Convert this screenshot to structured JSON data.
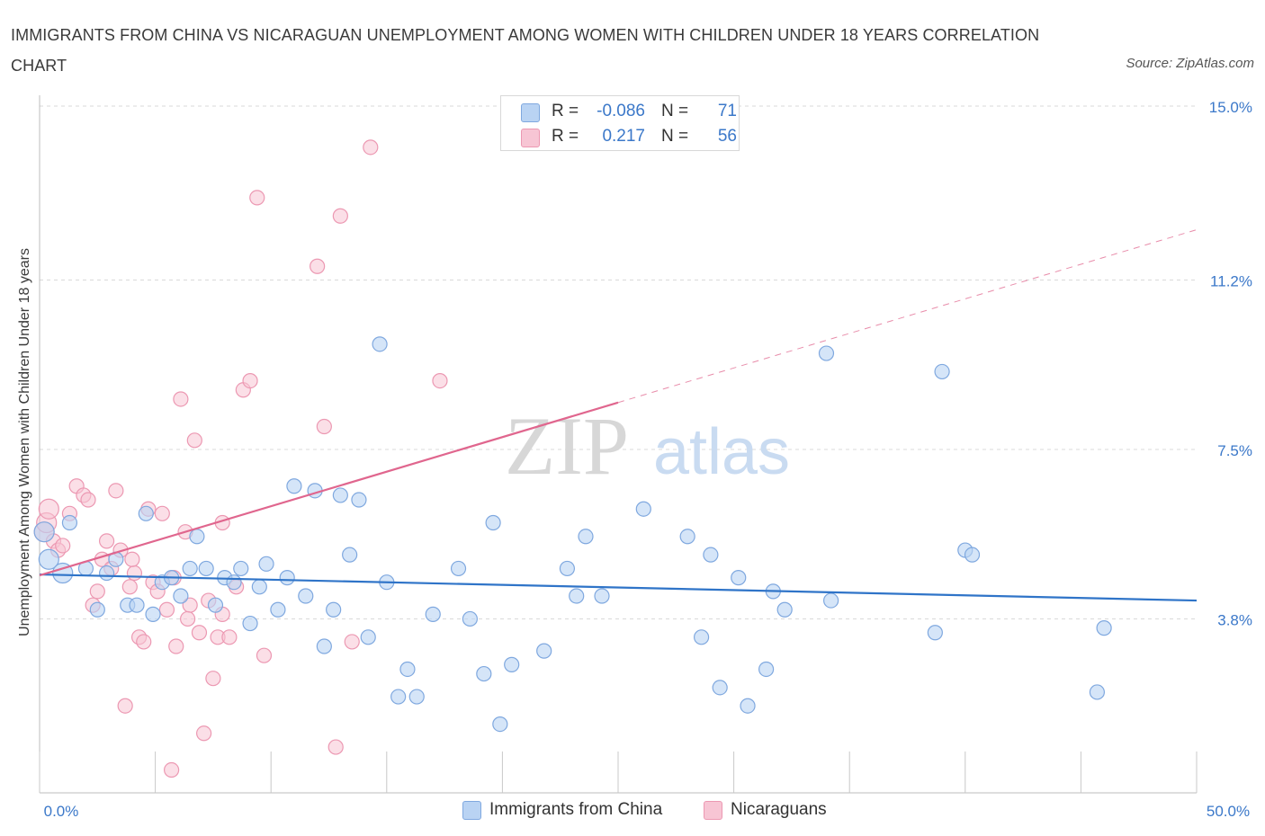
{
  "header": {
    "title": "IMMIGRANTS FROM CHINA VS NICARAGUAN UNEMPLOYMENT AMONG WOMEN WITH CHILDREN UNDER 18 YEARS CORRELATION CHART",
    "source": "Source: ZipAtlas.com"
  },
  "watermark": {
    "zip": "ZIP",
    "atlas": "atlas"
  },
  "legend": {
    "r_label": "R =",
    "n_label": "N =",
    "china": {
      "r": "-0.086",
      "n": "71"
    },
    "nicaraguans": {
      "r": "0.217",
      "n": "56"
    }
  },
  "colors": {
    "china_fill": "#b9d3f3",
    "china_stroke": "#7fa8df",
    "china_line": "#2f74c8",
    "nic_fill": "#f7c5d4",
    "nic_stroke": "#ec98b2",
    "nic_line": "#e0668e",
    "tick_text": "#3b78c9",
    "grid": "#d9d9d9"
  },
  "chart_data": {
    "type": "scatter",
    "title": "IMMIGRANTS FROM CHINA VS NICARAGUAN UNEMPLOYMENT AMONG WOMEN WITH CHILDREN UNDER 18 YEARS CORRELATION CHART",
    "xlabel": "",
    "ylabel": "Unemployment Among Women with Children Under 18 years",
    "xlim": [
      0,
      50
    ],
    "ylim": [
      0,
      15
    ],
    "x_tick_labels": [
      "0.0%",
      "50.0%"
    ],
    "y_ticks": [
      3.8,
      7.5,
      11.2,
      15.0
    ],
    "y_tick_labels": [
      "3.8%",
      "7.5%",
      "11.2%",
      "15.0%"
    ],
    "grid": true,
    "legend_position": "top-center and bottom",
    "series": [
      {
        "name": "Immigrants from China",
        "r": -0.086,
        "n": 71,
        "trend": {
          "x": [
            0,
            50
          ],
          "y": [
            4.77,
            4.2
          ]
        },
        "points": [
          [
            0.2,
            5.7
          ],
          [
            0.4,
            5.1
          ],
          [
            1.0,
            4.8
          ],
          [
            1.3,
            5.9
          ],
          [
            2.0,
            4.9
          ],
          [
            2.5,
            4.0
          ],
          [
            2.9,
            4.8
          ],
          [
            3.3,
            5.1
          ],
          [
            3.8,
            4.1
          ],
          [
            4.2,
            4.1
          ],
          [
            4.6,
            6.1
          ],
          [
            4.9,
            3.9
          ],
          [
            5.3,
            4.6
          ],
          [
            5.7,
            4.7
          ],
          [
            6.1,
            4.3
          ],
          [
            6.5,
            4.9
          ],
          [
            6.8,
            5.6
          ],
          [
            7.2,
            4.9
          ],
          [
            7.6,
            4.1
          ],
          [
            8.0,
            4.7
          ],
          [
            8.4,
            4.6
          ],
          [
            8.7,
            4.9
          ],
          [
            9.1,
            3.7
          ],
          [
            9.5,
            4.5
          ],
          [
            9.8,
            5.0
          ],
          [
            10.3,
            4.0
          ],
          [
            10.7,
            4.7
          ],
          [
            11.0,
            6.7
          ],
          [
            11.5,
            4.3
          ],
          [
            11.9,
            6.6
          ],
          [
            12.3,
            3.2
          ],
          [
            12.7,
            4.0
          ],
          [
            13.0,
            6.5
          ],
          [
            13.4,
            5.2
          ],
          [
            13.8,
            6.4
          ],
          [
            14.2,
            3.4
          ],
          [
            14.7,
            9.8
          ],
          [
            15.0,
            4.6
          ],
          [
            15.5,
            2.1
          ],
          [
            15.9,
            2.7
          ],
          [
            16.3,
            2.1
          ],
          [
            17.0,
            3.9
          ],
          [
            18.1,
            4.9
          ],
          [
            18.6,
            3.8
          ],
          [
            19.2,
            2.6
          ],
          [
            19.6,
            5.9
          ],
          [
            19.9,
            1.5
          ],
          [
            20.4,
            2.8
          ],
          [
            21.8,
            3.1
          ],
          [
            22.8,
            4.9
          ],
          [
            23.2,
            4.3
          ],
          [
            23.6,
            5.6
          ],
          [
            24.3,
            4.3
          ],
          [
            26.1,
            6.2
          ],
          [
            28.0,
            5.6
          ],
          [
            28.6,
            3.4
          ],
          [
            29.0,
            5.2
          ],
          [
            29.4,
            2.3
          ],
          [
            30.2,
            4.7
          ],
          [
            30.6,
            1.9
          ],
          [
            31.4,
            2.7
          ],
          [
            31.7,
            4.4
          ],
          [
            32.2,
            4.0
          ],
          [
            34.0,
            9.6
          ],
          [
            34.2,
            4.2
          ],
          [
            38.7,
            3.5
          ],
          [
            39.0,
            9.2
          ],
          [
            40.0,
            5.3
          ],
          [
            40.3,
            5.2
          ],
          [
            45.7,
            2.2
          ],
          [
            46.0,
            3.6
          ]
        ]
      },
      {
        "name": "Nicaraguans",
        "r": 0.217,
        "n": 56,
        "trend": {
          "x": [
            0,
            50
          ],
          "y": [
            4.75,
            12.3
          ]
        },
        "trend_solid_until_x": 25,
        "points": [
          [
            0.2,
            5.7
          ],
          [
            0.3,
            5.9
          ],
          [
            0.4,
            6.2
          ],
          [
            0.6,
            5.5
          ],
          [
            0.8,
            5.3
          ],
          [
            1.0,
            5.4
          ],
          [
            1.3,
            6.1
          ],
          [
            1.6,
            6.7
          ],
          [
            1.9,
            6.5
          ],
          [
            2.1,
            6.4
          ],
          [
            2.3,
            4.1
          ],
          [
            2.5,
            4.4
          ],
          [
            2.7,
            5.1
          ],
          [
            2.9,
            5.5
          ],
          [
            3.1,
            4.9
          ],
          [
            3.3,
            6.6
          ],
          [
            3.5,
            5.3
          ],
          [
            3.7,
            1.9
          ],
          [
            3.9,
            4.5
          ],
          [
            4.1,
            4.8
          ],
          [
            4.3,
            3.4
          ],
          [
            4.5,
            3.3
          ],
          [
            4.7,
            6.2
          ],
          [
            4.9,
            4.6
          ],
          [
            5.1,
            4.4
          ],
          [
            5.3,
            6.1
          ],
          [
            5.5,
            4.0
          ],
          [
            5.7,
            0.5
          ],
          [
            5.9,
            3.2
          ],
          [
            6.1,
            8.6
          ],
          [
            6.3,
            5.7
          ],
          [
            6.5,
            4.1
          ],
          [
            6.7,
            7.7
          ],
          [
            6.9,
            3.5
          ],
          [
            7.1,
            1.3
          ],
          [
            7.3,
            4.2
          ],
          [
            7.5,
            2.5
          ],
          [
            7.7,
            3.4
          ],
          [
            7.9,
            5.9
          ],
          [
            8.2,
            3.4
          ],
          [
            8.5,
            4.5
          ],
          [
            8.8,
            8.8
          ],
          [
            9.1,
            9.0
          ],
          [
            9.4,
            13.0
          ],
          [
            9.7,
            3.0
          ],
          [
            12.0,
            11.5
          ],
          [
            12.3,
            8.0
          ],
          [
            13.0,
            12.6
          ],
          [
            12.8,
            1.0
          ],
          [
            13.5,
            3.3
          ],
          [
            14.3,
            14.1
          ],
          [
            17.3,
            9.0
          ],
          [
            7.9,
            3.9
          ],
          [
            6.4,
            3.8
          ],
          [
            5.8,
            4.7
          ],
          [
            4.0,
            5.1
          ]
        ]
      }
    ]
  },
  "bottom_legend": {
    "china_label": "Immigrants from China",
    "nic_label": "Nicaraguans"
  }
}
